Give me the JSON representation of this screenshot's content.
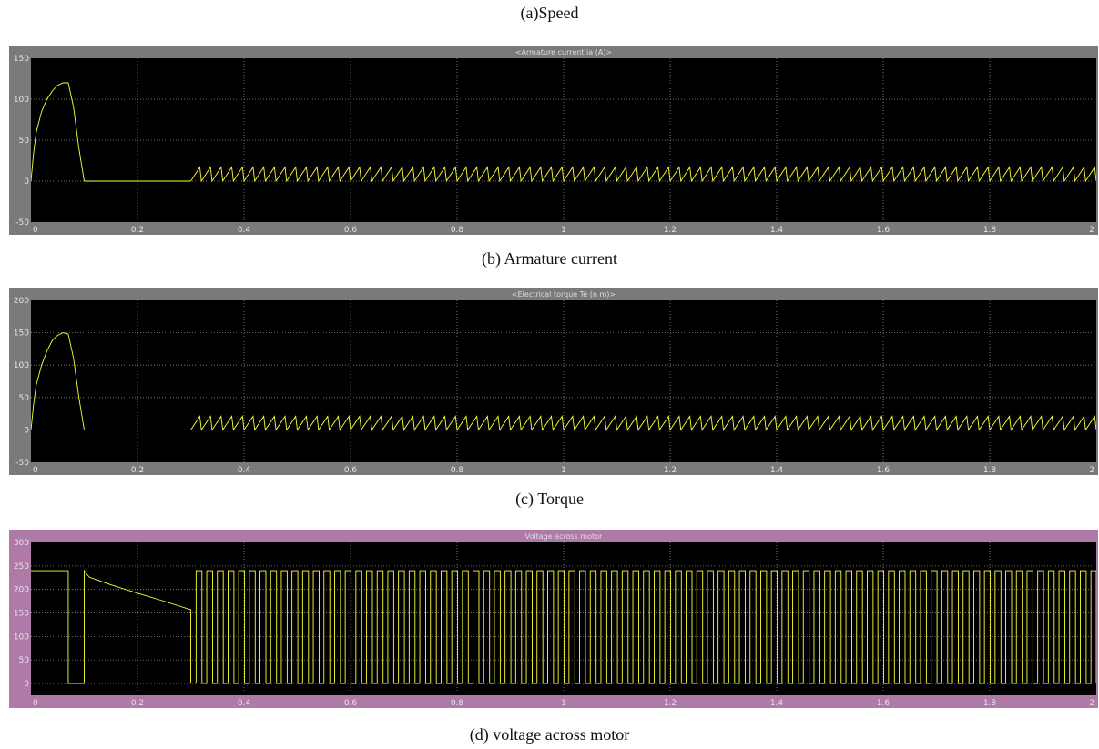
{
  "captions": {
    "a": "(a)Speed",
    "b": "(b) Armature current",
    "c": "(c) Torque",
    "d": "(d) voltage across motor"
  },
  "chart_data": [
    {
      "type": "line",
      "title": "<Armature current ia (A)>",
      "xlim": [
        0,
        2
      ],
      "ylim": [
        -50,
        150
      ],
      "x_ticks": [
        "0",
        "0.2",
        "0.4",
        "0.6",
        "0.8",
        "1",
        "1.2",
        "1.4",
        "1.6",
        "1.8",
        "2"
      ],
      "y_ticks": [
        "150",
        "100",
        "50",
        "0",
        "-50"
      ],
      "y_tick_values": [
        150,
        100,
        50,
        0,
        -50
      ],
      "grid": true,
      "frame_color": "#7a7a7a",
      "plot_bg": "#000000",
      "line_color": "#ffff33",
      "series": [
        {
          "segments": [
            {
              "kind": "points",
              "x": [
                0,
                0.005,
                0.01,
                0.02,
                0.03,
                0.04,
                0.05,
                0.06,
                0.07,
                0.08,
                0.09,
                0.1
              ],
              "y": [
                0,
                35,
                60,
                85,
                100,
                110,
                117,
                120,
                120,
                90,
                40,
                0
              ]
            },
            {
              "kind": "points",
              "x": [
                0.1,
                0.3
              ],
              "y": [
                0,
                0
              ]
            },
            {
              "kind": "sawtooth",
              "x_start": 0.3,
              "x_end": 2.0,
              "period": 0.02,
              "low": 0,
              "high": 17
            }
          ]
        }
      ]
    },
    {
      "type": "line",
      "title": "<Electrical torque Te (n m)>",
      "xlim": [
        0,
        2
      ],
      "ylim": [
        -50,
        200
      ],
      "x_ticks": [
        "0",
        "0.2",
        "0.4",
        "0.6",
        "0.8",
        "1",
        "1.2",
        "1.4",
        "1.6",
        "1.8",
        "2"
      ],
      "y_ticks": [
        "200",
        "150",
        "100",
        "50",
        "0",
        "-50"
      ],
      "y_tick_values": [
        200,
        150,
        100,
        50,
        0,
        -50
      ],
      "grid": true,
      "frame_color": "#7a7a7a",
      "plot_bg": "#000000",
      "line_color": "#ffff33",
      "series": [
        {
          "segments": [
            {
              "kind": "points",
              "x": [
                0,
                0.005,
                0.01,
                0.02,
                0.03,
                0.04,
                0.05,
                0.06,
                0.07,
                0.08,
                0.09,
                0.1
              ],
              "y": [
                0,
                40,
                70,
                100,
                122,
                138,
                146,
                150,
                148,
                110,
                50,
                0
              ]
            },
            {
              "kind": "points",
              "x": [
                0.1,
                0.3
              ],
              "y": [
                0,
                0
              ]
            },
            {
              "kind": "sawtooth",
              "x_start": 0.3,
              "x_end": 2.0,
              "period": 0.02,
              "low": 0,
              "high": 21
            }
          ]
        }
      ]
    },
    {
      "type": "line",
      "title": "Voltage across motor",
      "xlim": [
        0,
        2
      ],
      "ylim": [
        -25,
        300
      ],
      "x_ticks": [
        "0",
        "0.2",
        "0.4",
        "0.6",
        "0.8",
        "1",
        "1.2",
        "1.4",
        "1.6",
        "1.8",
        "2"
      ],
      "y_ticks": [
        "300",
        "250",
        "200",
        "150",
        "100",
        "50",
        "0"
      ],
      "y_tick_values": [
        300,
        250,
        200,
        150,
        100,
        50,
        0
      ],
      "grid": true,
      "frame_color": "#b07aa8",
      "plot_bg": "#000000",
      "line_color": "#ffff33",
      "series": [
        {
          "segments": [
            {
              "kind": "points",
              "x": [
                0,
                0.07,
                0.07,
                0.1,
                0.1,
                0.105,
                0.11,
                0.12,
                0.15,
                0.2,
                0.25,
                0.3,
                0.3
              ],
              "y": [
                240,
                240,
                0,
                0,
                240,
                232,
                226,
                222,
                210,
                192,
                175,
                157,
                0
              ]
            },
            {
              "kind": "square",
              "x_start": 0.31,
              "x_end": 2.0,
              "period": 0.02,
              "duty": 0.55,
              "low": 0,
              "high": 240
            }
          ]
        }
      ]
    }
  ]
}
